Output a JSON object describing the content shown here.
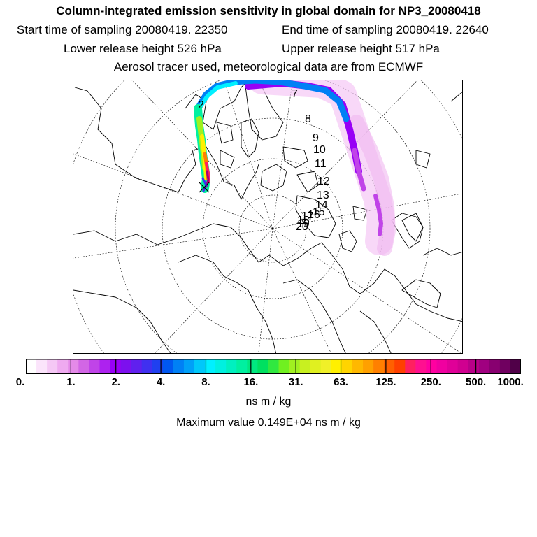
{
  "title": "Column-integrated emission sensitivity in global domain for NP3_20080418",
  "sampling": {
    "start_label": "Start time of sampling 20080419. 22350",
    "end_label": "End time of sampling 20080419. 22640"
  },
  "release": {
    "lower_label": "Lower release height  526 hPa",
    "upper_label": "Upper release height  517 hPa"
  },
  "tracer_note": "Aerosol tracer used, meteorological data are from ECMWF",
  "trajectory_day_labels": [
    "2",
    "7",
    "8",
    "9",
    "10",
    "11",
    "12",
    "13",
    "14",
    "15",
    "16",
    "17",
    "18",
    "19",
    "20"
  ],
  "colorbar": {
    "tick_labels": [
      "0.",
      "1.",
      "2.",
      "4.",
      "8.",
      "16.",
      "31.",
      "63.",
      "125.",
      "250.",
      "500.",
      "1000."
    ],
    "colors": [
      "#ffffff",
      "#fbe4fb",
      "#f5c8f5",
      "#efaaf0",
      "#e48ae8",
      "#d266e5",
      "#c044e8",
      "#ad22ef",
      "#9800f6",
      "#7c10ee",
      "#6020ee",
      "#4030f0",
      "#2040f0",
      "#0058f0",
      "#0080f5",
      "#00a0f8",
      "#00c8fa",
      "#00f0ff",
      "#00f0e0",
      "#00f0c0",
      "#00f0a0",
      "#00e880",
      "#00e060",
      "#30e840",
      "#70f020",
      "#a0f020",
      "#c8f020",
      "#e0f020",
      "#f0f028",
      "#fff000",
      "#ffd400",
      "#ffb800",
      "#ffa000",
      "#ff8000",
      "#ff6000",
      "#ff4000",
      "#ff2060",
      "#ff1090",
      "#ff00a0",
      "#f000a0",
      "#e00098",
      "#d00090",
      "#b80088",
      "#a00080",
      "#880070",
      "#700060",
      "#500048"
    ],
    "units": "ns m / kg"
  },
  "max_value_label": "Maximum value  0.149E+04 ns m / kg",
  "colors": {
    "frame": "#000000",
    "coast": "#000000",
    "grid": "#000000"
  }
}
